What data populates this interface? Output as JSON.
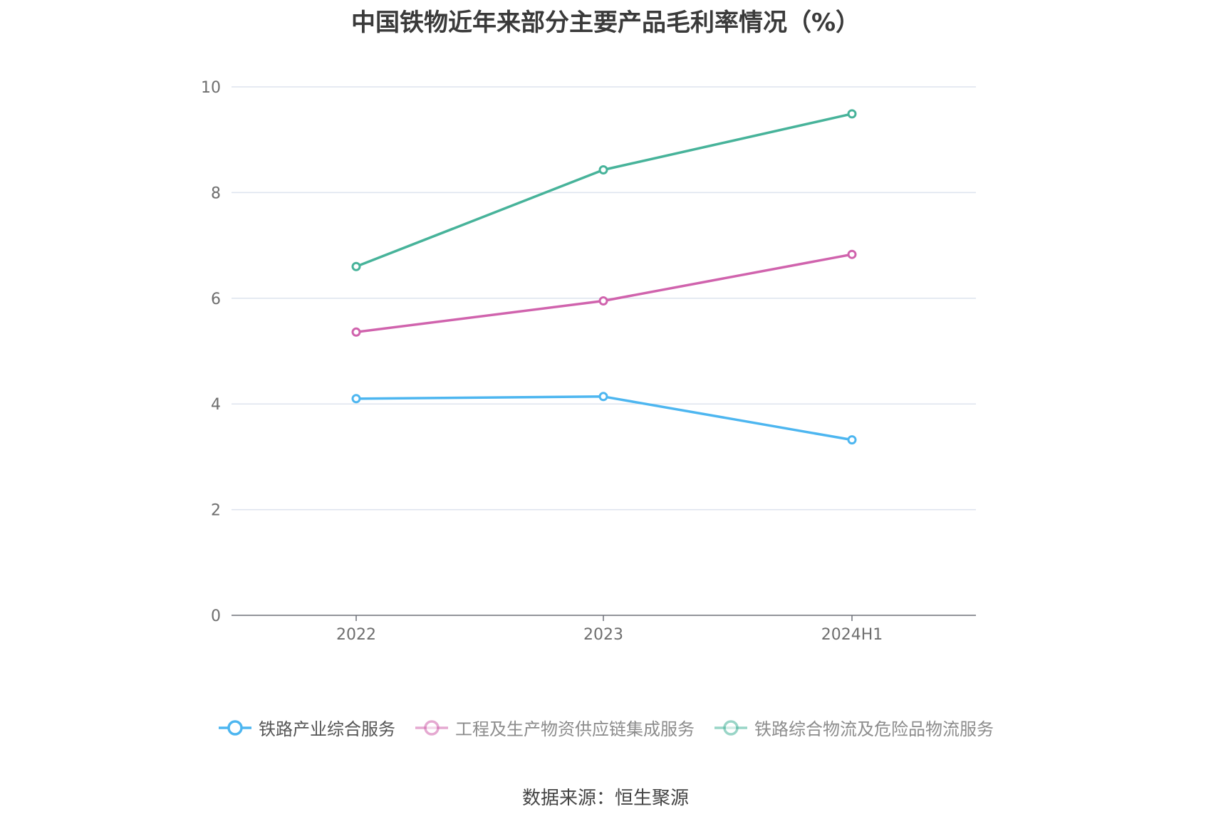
{
  "title": "中国铁物近年来部分主要产品毛利率情况（%）",
  "source": "数据来源：恒生聚源",
  "chart_data": {
    "type": "line",
    "title": "中国铁物近年来部分主要产品毛利率情况（%）",
    "categories": [
      "2022",
      "2023",
      "2024H1"
    ],
    "ylim": [
      0,
      10
    ],
    "yticks": [
      0,
      2,
      4,
      6,
      8,
      10
    ],
    "grid": true,
    "legend_position": "bottom",
    "series": [
      {
        "name": "铁路产业综合服务",
        "color": "#4db6f0",
        "values": [
          4.1,
          4.14,
          3.32
        ],
        "legend_active": true
      },
      {
        "name": "工程及生产物资供应链集成服务",
        "color": "#d063ad",
        "values": [
          5.36,
          5.95,
          6.83
        ],
        "legend_active": false
      },
      {
        "name": "铁路综合物流及危险品物流服务",
        "color": "#47b39a",
        "values": [
          6.6,
          8.43,
          9.49
        ],
        "legend_active": false
      }
    ]
  }
}
